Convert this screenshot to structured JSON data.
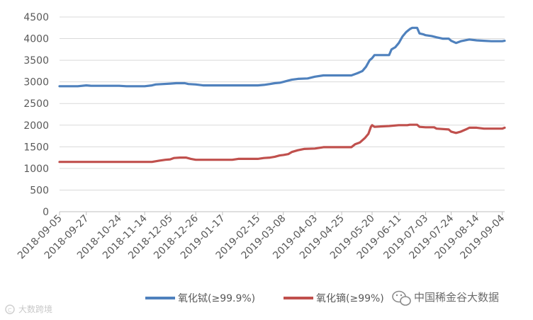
{
  "chart_data": {
    "type": "line",
    "title": "",
    "xlabel": "",
    "ylabel": "",
    "ylim": [
      0,
      4500
    ],
    "yticks": [
      0,
      500,
      1000,
      1500,
      2000,
      2500,
      3000,
      3500,
      4000,
      4500
    ],
    "grid": "horizontal",
    "legend_position": "bottom",
    "x_start": "2018-09-05",
    "x_end": "2019-09-06",
    "xtick_labels": [
      "2018-09-05",
      "2018-09-27",
      "2018-10-24",
      "2018-11-14",
      "2018-12-05",
      "2018-12-26",
      "2019-01-17",
      "2019-02-15",
      "2019-03-08",
      "2019-04-03",
      "2019-04-25",
      "2019-05-20",
      "2019-06-11",
      "2019-07-03",
      "2019-07-24",
      "2019-08-14",
      "2019-09-04"
    ],
    "series": [
      {
        "name": "氧化铽(≥99.9%)",
        "color": "#4f81bd",
        "points": [
          [
            "2018-09-05",
            2900
          ],
          [
            "2018-09-20",
            2900
          ],
          [
            "2018-09-27",
            2920
          ],
          [
            "2018-10-01",
            2910
          ],
          [
            "2018-10-24",
            2910
          ],
          [
            "2018-10-30",
            2900
          ],
          [
            "2018-11-14",
            2900
          ],
          [
            "2018-11-20",
            2920
          ],
          [
            "2018-11-23",
            2940
          ],
          [
            "2018-12-05",
            2960
          ],
          [
            "2018-12-10",
            2970
          ],
          [
            "2018-12-17",
            2970
          ],
          [
            "2018-12-20",
            2950
          ],
          [
            "2018-12-26",
            2940
          ],
          [
            "2019-01-01",
            2920
          ],
          [
            "2019-01-17",
            2920
          ],
          [
            "2019-02-15",
            2920
          ],
          [
            "2019-02-20",
            2930
          ],
          [
            "2019-02-25",
            2950
          ],
          [
            "2019-03-01",
            2970
          ],
          [
            "2019-03-05",
            2980
          ],
          [
            "2019-03-08",
            3000
          ],
          [
            "2019-03-12",
            3030
          ],
          [
            "2019-03-15",
            3050
          ],
          [
            "2019-03-20",
            3070
          ],
          [
            "2019-03-28",
            3080
          ],
          [
            "2019-04-03",
            3120
          ],
          [
            "2019-04-10",
            3150
          ],
          [
            "2019-04-25",
            3150
          ],
          [
            "2019-05-03",
            3150
          ],
          [
            "2019-05-08",
            3200
          ],
          [
            "2019-05-12",
            3250
          ],
          [
            "2019-05-15",
            3350
          ],
          [
            "2019-05-18",
            3500
          ],
          [
            "2019-05-20",
            3550
          ],
          [
            "2019-05-22",
            3620
          ],
          [
            "2019-05-31",
            3620
          ],
          [
            "2019-06-03",
            3620
          ],
          [
            "2019-06-05",
            3750
          ],
          [
            "2019-06-08",
            3800
          ],
          [
            "2019-06-11",
            3900
          ],
          [
            "2019-06-14",
            4050
          ],
          [
            "2019-06-17",
            4150
          ],
          [
            "2019-06-20",
            4220
          ],
          [
            "2019-06-22",
            4250
          ],
          [
            "2019-06-26",
            4250
          ],
          [
            "2019-06-28",
            4120
          ],
          [
            "2019-07-01",
            4100
          ],
          [
            "2019-07-03",
            4080
          ],
          [
            "2019-07-08",
            4060
          ],
          [
            "2019-07-12",
            4030
          ],
          [
            "2019-07-17",
            4000
          ],
          [
            "2019-07-22",
            4000
          ],
          [
            "2019-07-24",
            3950
          ],
          [
            "2019-07-28",
            3900
          ],
          [
            "2019-08-01",
            3940
          ],
          [
            "2019-08-06",
            3970
          ],
          [
            "2019-08-08",
            3980
          ],
          [
            "2019-08-14",
            3960
          ],
          [
            "2019-08-20",
            3950
          ],
          [
            "2019-08-26",
            3940
          ],
          [
            "2019-09-04",
            3940
          ],
          [
            "2019-09-06",
            3950
          ]
        ]
      },
      {
        "name": "氧化镝(≥99%)",
        "color": "#c0504d",
        "points": [
          [
            "2018-09-05",
            1150
          ],
          [
            "2018-11-20",
            1150
          ],
          [
            "2018-11-26",
            1180
          ],
          [
            "2018-12-01",
            1200
          ],
          [
            "2018-12-05",
            1210
          ],
          [
            "2018-12-08",
            1240
          ],
          [
            "2018-12-13",
            1250
          ],
          [
            "2018-12-18",
            1250
          ],
          [
            "2018-12-22",
            1220
          ],
          [
            "2018-12-26",
            1200
          ],
          [
            "2019-01-10",
            1200
          ],
          [
            "2019-01-17",
            1200
          ],
          [
            "2019-01-25",
            1200
          ],
          [
            "2019-01-30",
            1220
          ],
          [
            "2019-02-15",
            1220
          ],
          [
            "2019-02-20",
            1240
          ],
          [
            "2019-02-25",
            1250
          ],
          [
            "2019-03-01",
            1270
          ],
          [
            "2019-03-05",
            1300
          ],
          [
            "2019-03-08",
            1310
          ],
          [
            "2019-03-12",
            1330
          ],
          [
            "2019-03-15",
            1380
          ],
          [
            "2019-03-20",
            1420
          ],
          [
            "2019-03-25",
            1450
          ],
          [
            "2019-04-03",
            1460
          ],
          [
            "2019-04-10",
            1490
          ],
          [
            "2019-04-25",
            1490
          ],
          [
            "2019-05-03",
            1490
          ],
          [
            "2019-05-06",
            1560
          ],
          [
            "2019-05-10",
            1600
          ],
          [
            "2019-05-14",
            1700
          ],
          [
            "2019-05-17",
            1800
          ],
          [
            "2019-05-19",
            1960
          ],
          [
            "2019-05-20",
            2000
          ],
          [
            "2019-05-22",
            1960
          ],
          [
            "2019-05-27",
            1970
          ],
          [
            "2019-06-03",
            1980
          ],
          [
            "2019-06-11",
            2000
          ],
          [
            "2019-06-18",
            2000
          ],
          [
            "2019-06-20",
            2010
          ],
          [
            "2019-06-26",
            2010
          ],
          [
            "2019-06-28",
            1960
          ],
          [
            "2019-07-03",
            1950
          ],
          [
            "2019-07-10",
            1950
          ],
          [
            "2019-07-12",
            1920
          ],
          [
            "2019-07-22",
            1900
          ],
          [
            "2019-07-24",
            1850
          ],
          [
            "2019-07-28",
            1820
          ],
          [
            "2019-08-01",
            1850
          ],
          [
            "2019-08-05",
            1900
          ],
          [
            "2019-08-08",
            1940
          ],
          [
            "2019-08-14",
            1940
          ],
          [
            "2019-08-20",
            1920
          ],
          [
            "2019-09-04",
            1920
          ],
          [
            "2019-09-06",
            1940
          ]
        ]
      }
    ]
  },
  "watermark": {
    "left_text": "大数跨境",
    "right_text": "中国稀金谷大数据",
    "wechat_icon": "wechat-icon",
    "logo_icon": "logo-icon"
  }
}
